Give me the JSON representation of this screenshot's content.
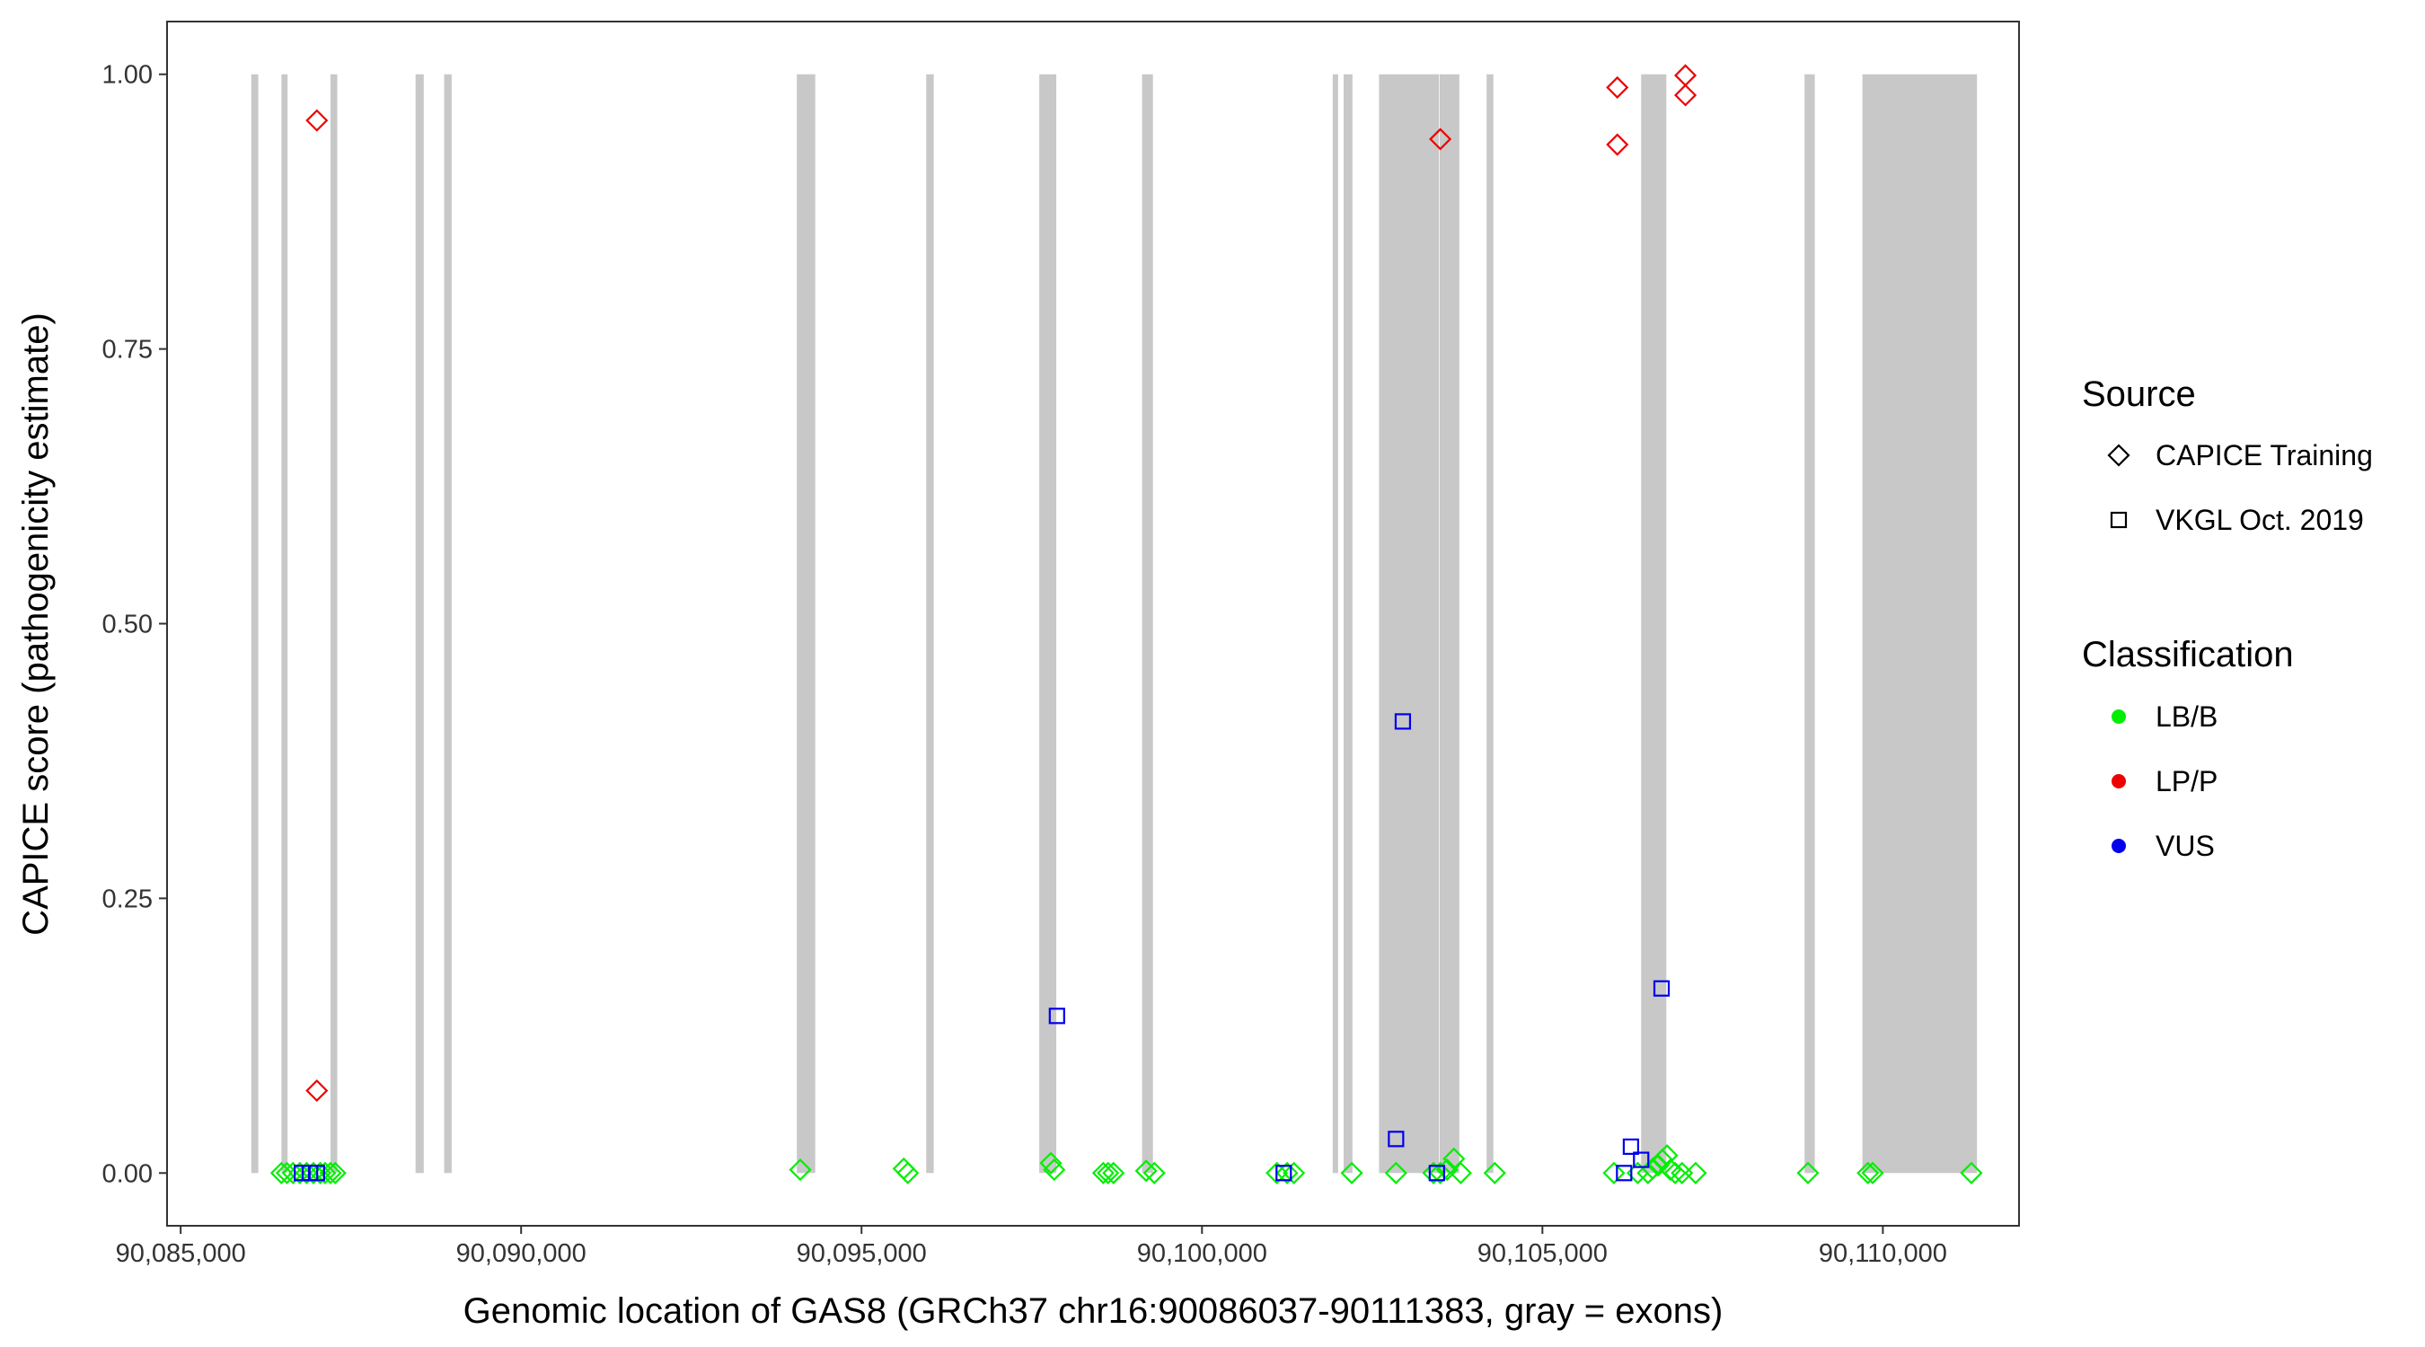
{
  "chart_data": {
    "type": "scatter",
    "title": "",
    "xlabel": "Genomic location of GAS8 (GRCh37 chr16:90086037-90111383, gray = exons)",
    "ylabel": "CAPICE score (pathogenicity estimate)",
    "xlim": [
      90084800,
      90112000
    ],
    "ylim": [
      -0.048,
      1.048
    ],
    "x_ticks": [
      90085000,
      90090000,
      90095000,
      90100000,
      90105000,
      90110000
    ],
    "x_tick_labels": [
      "90,085,000",
      "90,090,000",
      "90,095,000",
      "90,100,000",
      "90,105,000",
      "90,110,000"
    ],
    "y_ticks": [
      0,
      0.25,
      0.5,
      0.75,
      1.0
    ],
    "y_tick_labels": [
      "0.00",
      "0.25",
      "0.50",
      "0.75",
      "1.00"
    ],
    "grid": false,
    "exon_color": "#c8c8c8",
    "exons": [
      [
        90086037,
        90086140
      ],
      [
        90086480,
        90086570
      ],
      [
        90087200,
        90087300
      ],
      [
        90088450,
        90088570
      ],
      [
        90088870,
        90088980
      ],
      [
        90094050,
        90094320
      ],
      [
        90095950,
        90096060
      ],
      [
        90097610,
        90097860
      ],
      [
        90099120,
        90099280
      ],
      [
        90101920,
        90101980
      ],
      [
        90102080,
        90102210
      ],
      [
        90102600,
        90103480
      ],
      [
        90103490,
        90103780
      ],
      [
        90104180,
        90104280
      ],
      [
        90106450,
        90106820
      ],
      [
        90108850,
        90109000
      ],
      [
        90109700,
        90111383
      ]
    ],
    "legend": {
      "position": "right",
      "source_title": "Source",
      "source_items": [
        {
          "label": "CAPICE Training",
          "shape": "diamond"
        },
        {
          "label": "VKGL Oct. 2019",
          "shape": "square"
        }
      ],
      "class_title": "Classification",
      "class_items": [
        {
          "label": "LB/B",
          "color": "#00ee00"
        },
        {
          "label": "LP/P",
          "color": "#ee0000"
        },
        {
          "label": "VUS",
          "color": "#0000ee"
        }
      ]
    },
    "series": [
      {
        "source": "CAPICE Training",
        "class": "LB/B",
        "shape": "diamond",
        "color": "#00ee00",
        "points": [
          [
            90086480,
            0
          ],
          [
            90086560,
            0
          ],
          [
            90086650,
            0
          ],
          [
            90086750,
            0
          ],
          [
            90086850,
            0
          ],
          [
            90086950,
            0
          ],
          [
            90087050,
            0
          ],
          [
            90087120,
            0
          ],
          [
            90087200,
            0
          ],
          [
            90087270,
            0
          ],
          [
            90094100,
            0.003
          ],
          [
            90095620,
            0.004
          ],
          [
            90095680,
            0
          ],
          [
            90097780,
            0.009
          ],
          [
            90097830,
            0.003
          ],
          [
            90098550,
            0
          ],
          [
            90098620,
            0
          ],
          [
            90098700,
            0
          ],
          [
            90099180,
            0.002
          ],
          [
            90099300,
            0
          ],
          [
            90101100,
            0
          ],
          [
            90101250,
            0
          ],
          [
            90101350,
            0
          ],
          [
            90102200,
            0
          ],
          [
            90102850,
            0
          ],
          [
            90103400,
            0
          ],
          [
            90103500,
            0
          ],
          [
            90103600,
            0.003
          ],
          [
            90103700,
            0.013
          ],
          [
            90103800,
            0
          ],
          [
            90104300,
            0
          ],
          [
            90106050,
            0
          ],
          [
            90106400,
            0
          ],
          [
            90106550,
            0
          ],
          [
            90106620,
            0.004
          ],
          [
            90106700,
            0.007
          ],
          [
            90106760,
            0.012
          ],
          [
            90106830,
            0.016
          ],
          [
            90106880,
            0.003
          ],
          [
            90106950,
            0
          ],
          [
            90107050,
            0
          ],
          [
            90107250,
            0
          ],
          [
            90108900,
            0
          ],
          [
            90109780,
            0
          ],
          [
            90109850,
            0
          ],
          [
            90111300,
            0
          ]
        ]
      },
      {
        "source": "CAPICE Training",
        "class": "LP/P",
        "shape": "diamond",
        "color": "#ee0000",
        "points": [
          [
            90087000,
            0.958
          ],
          [
            90087000,
            0.075
          ],
          [
            90103500,
            0.941
          ],
          [
            90106100,
            0.988
          ],
          [
            90106100,
            0.936
          ],
          [
            90107100,
            0.999
          ],
          [
            90107100,
            0.981
          ]
        ]
      },
      {
        "source": "VKGL Oct. 2019",
        "class": "VUS",
        "shape": "square",
        "color": "#0000ee",
        "points": [
          [
            90086780,
            0
          ],
          [
            90086900,
            0
          ],
          [
            90087000,
            0
          ],
          [
            90097870,
            0.143
          ],
          [
            90101200,
            0
          ],
          [
            90102850,
            0.031
          ],
          [
            90102950,
            0.411
          ],
          [
            90103450,
            0
          ],
          [
            90106200,
            0
          ],
          [
            90106300,
            0.024
          ],
          [
            90106450,
            0.012
          ],
          [
            90106750,
            0.168
          ]
        ]
      }
    ]
  }
}
